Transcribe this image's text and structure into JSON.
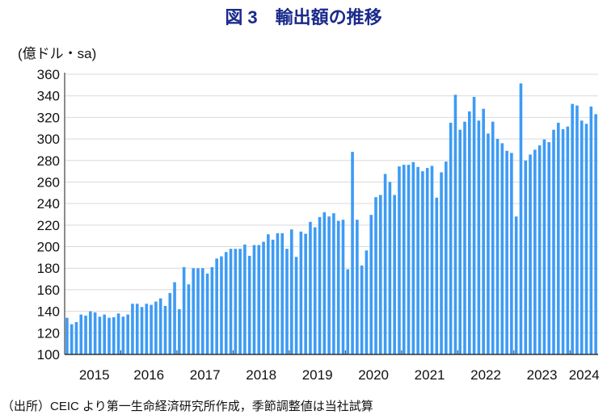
{
  "title": "図 3　輸出額の推移",
  "source": "（出所）CEIC より第一生命経済研究所作成，季節調整値は当社試算",
  "colors": {
    "bar": "#3d9bf5",
    "title": "#1a2a8c",
    "grid": "#d9d9d9"
  },
  "chart_data": {
    "type": "bar",
    "title": "図 3　輸出額の推移",
    "ylabel": "(億ドル・sa)",
    "xlabel": "",
    "ylim": [
      100,
      360
    ],
    "yticks": [
      100,
      120,
      140,
      160,
      180,
      200,
      220,
      240,
      260,
      280,
      300,
      320,
      340,
      360
    ],
    "xticks": [
      "2015",
      "2016",
      "2017",
      "2018",
      "2019",
      "2020",
      "2021",
      "2022",
      "2023",
      "2024"
    ],
    "grid": true,
    "frequency": "monthly",
    "start": "2015-01",
    "end": "2024-06",
    "values": [
      134,
      128,
      130,
      137,
      136,
      140,
      139,
      135,
      137,
      134,
      134.5,
      138,
      135,
      137,
      147,
      147,
      144,
      147,
      146,
      149,
      152,
      145,
      157,
      167,
      142,
      181,
      165,
      180,
      180,
      180,
      175,
      181,
      189,
      191,
      195,
      198,
      198,
      198,
      202,
      191.5,
      201.5,
      201.5,
      204.5,
      211.5,
      206.5,
      212.5,
      212.5,
      198,
      216,
      190.5,
      214,
      212,
      223,
      218,
      227.5,
      232,
      228,
      231,
      224,
      225,
      179,
      288,
      225,
      182.5,
      196.5,
      229.5,
      246,
      248,
      267.5,
      260,
      248,
      274.5,
      276,
      276,
      278.5,
      274,
      270,
      273,
      275,
      245.5,
      269,
      279,
      315,
      341,
      308.5,
      316,
      325.5,
      339,
      317,
      328,
      305,
      316,
      300,
      296,
      289,
      287,
      228,
      351.5,
      280,
      285.5,
      290,
      294,
      299.5,
      297,
      308.5,
      315,
      309,
      311.5,
      332.5,
      331,
      317,
      314,
      330,
      323
    ]
  }
}
